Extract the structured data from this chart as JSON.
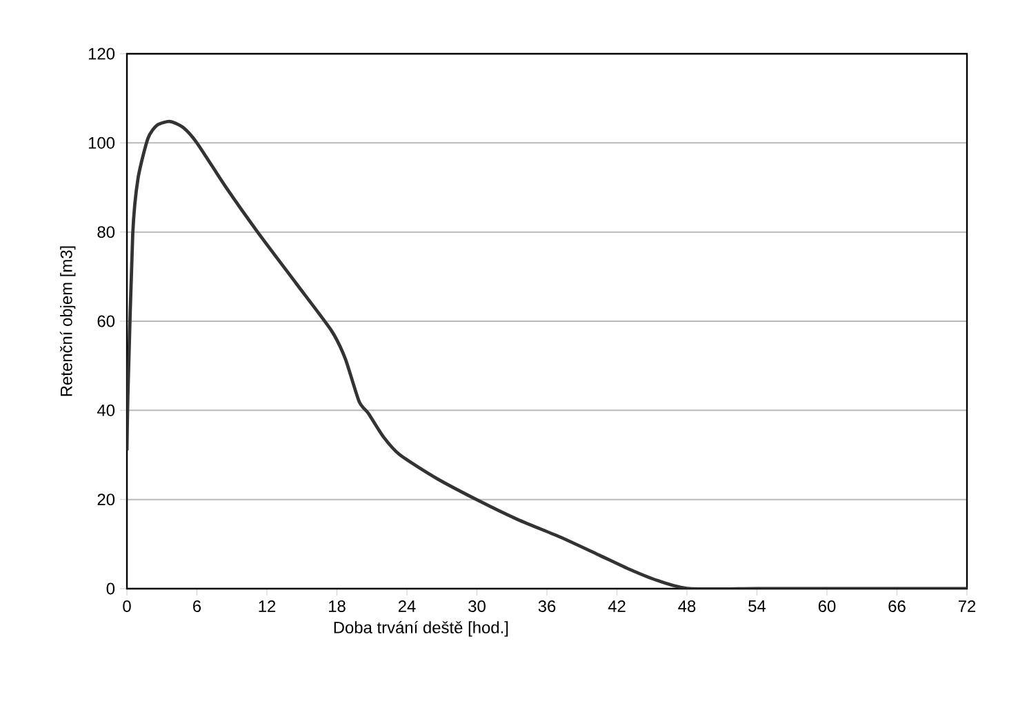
{
  "chart_data": {
    "type": "line",
    "xlabel": "Doba trvání deště [hod.]",
    "ylabel": "Retenční objem [m3]",
    "x": [
      0,
      0.1,
      0.5,
      0.95,
      1.8,
      2.6,
      3.7,
      4.8,
      6.0,
      8.5,
      11.2,
      14.5,
      17.5,
      18.7,
      19.9,
      20.7,
      22.0,
      23.4,
      26.5,
      30.1,
      33.5,
      37.2,
      40.5,
      43.1,
      45.5,
      48.2,
      54,
      60,
      66,
      72
    ],
    "series": [
      {
        "color": "#333333",
        "values": [
          31,
          45,
          79.6,
          92,
          101,
          104,
          104.8,
          103.5,
          100,
          90,
          80,
          68.5,
          58,
          51.7,
          42,
          39.3,
          34,
          30,
          24.8,
          19.8,
          15.5,
          11.5,
          7.5,
          4.3,
          1.8,
          0,
          0,
          0,
          0,
          0
        ]
      }
    ],
    "xlim": [
      0,
      72
    ],
    "ylim": [
      0,
      120
    ],
    "xticks": [
      0,
      6,
      12,
      18,
      24,
      30,
      36,
      42,
      48,
      54,
      60,
      66,
      72
    ],
    "yticks": [
      0,
      20,
      40,
      60,
      80,
      100,
      120
    ],
    "grid": "y",
    "marker": "none",
    "line_style": "solid"
  }
}
